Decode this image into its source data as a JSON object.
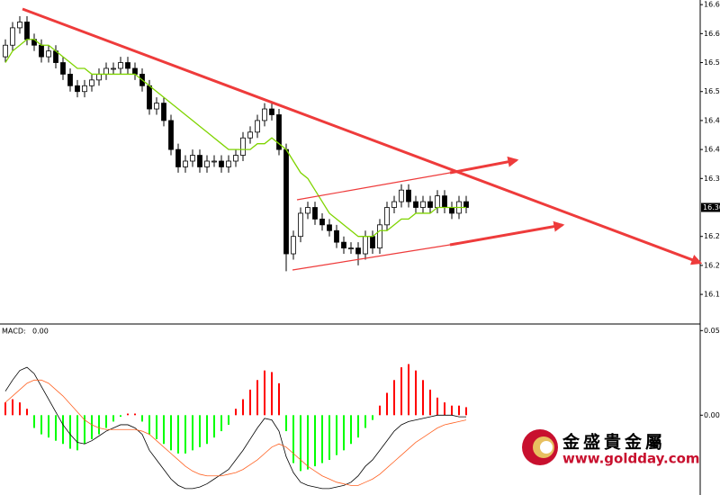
{
  "chart_data": [
    {
      "type": "candlestick",
      "open": [
        16.56,
        16.58,
        16.61,
        16.62,
        16.59,
        16.58,
        16.56,
        16.57,
        16.55,
        16.53,
        16.51,
        16.5,
        16.51,
        16.52,
        16.53,
        16.54,
        16.54,
        16.55,
        16.54,
        16.53,
        16.51,
        16.47,
        16.48,
        16.45,
        16.4,
        16.37,
        16.38,
        16.39,
        16.37,
        16.38,
        16.38,
        16.37,
        16.38,
        16.39,
        16.42,
        16.43,
        16.45,
        16.47,
        16.46,
        16.4,
        16.22,
        16.25,
        16.29,
        16.3,
        16.28,
        16.27,
        16.26,
        16.24,
        16.23,
        16.23,
        16.22,
        16.25,
        16.23,
        16.27,
        16.3,
        16.31,
        16.33,
        16.31,
        16.3,
        16.31,
        16.3,
        16.32,
        16.3,
        16.29,
        16.31
      ],
      "high": [
        16.59,
        16.62,
        16.63,
        16.63,
        16.6,
        16.59,
        16.58,
        16.58,
        16.56,
        16.54,
        16.52,
        16.52,
        16.53,
        16.54,
        16.55,
        16.55,
        16.56,
        16.56,
        16.55,
        16.54,
        16.52,
        16.49,
        16.49,
        16.46,
        16.41,
        16.39,
        16.4,
        16.4,
        16.39,
        16.39,
        16.39,
        16.39,
        16.4,
        16.43,
        16.44,
        16.46,
        16.48,
        16.48,
        16.47,
        16.41,
        16.26,
        16.3,
        16.31,
        16.31,
        16.29,
        16.28,
        16.27,
        16.25,
        16.24,
        16.24,
        16.26,
        16.26,
        16.28,
        16.31,
        16.32,
        16.34,
        16.34,
        16.32,
        16.32,
        16.32,
        16.33,
        16.33,
        16.31,
        16.32,
        16.32
      ],
      "low": [
        16.55,
        16.57,
        16.6,
        16.58,
        16.57,
        16.55,
        16.55,
        16.54,
        16.52,
        16.5,
        16.49,
        16.49,
        16.5,
        16.51,
        16.52,
        16.53,
        16.53,
        16.53,
        16.52,
        16.5,
        16.46,
        16.46,
        16.44,
        16.39,
        16.36,
        16.36,
        16.37,
        16.36,
        16.36,
        16.37,
        16.36,
        16.36,
        16.37,
        16.38,
        16.41,
        16.42,
        16.44,
        16.45,
        16.39,
        16.19,
        16.21,
        16.24,
        16.28,
        16.27,
        16.26,
        16.25,
        16.23,
        16.22,
        16.22,
        16.2,
        16.21,
        16.22,
        16.22,
        16.26,
        16.29,
        16.3,
        16.3,
        16.29,
        16.29,
        16.29,
        16.29,
        16.29,
        16.28,
        16.28,
        16.29
      ],
      "close": [
        16.58,
        16.61,
        16.62,
        16.59,
        16.58,
        16.56,
        16.57,
        16.55,
        16.53,
        16.51,
        16.5,
        16.51,
        16.52,
        16.53,
        16.54,
        16.54,
        16.55,
        16.54,
        16.53,
        16.51,
        16.47,
        16.48,
        16.45,
        16.4,
        16.37,
        16.38,
        16.39,
        16.37,
        16.38,
        16.38,
        16.37,
        16.38,
        16.39,
        16.42,
        16.43,
        16.45,
        16.47,
        16.46,
        16.4,
        16.22,
        16.25,
        16.29,
        16.3,
        16.28,
        16.27,
        16.26,
        16.24,
        16.23,
        16.23,
        16.22,
        16.25,
        16.23,
        16.27,
        16.3,
        16.31,
        16.33,
        16.31,
        16.3,
        16.31,
        16.3,
        16.32,
        16.3,
        16.29,
        16.31,
        16.3
      ],
      "up_color": "#ffffff",
      "down_color": "#000000",
      "ma_lines": [
        {
          "color": "#7fd400",
          "values": [
            16.55,
            16.57,
            16.58,
            16.59,
            16.59,
            16.58,
            16.58,
            16.57,
            16.56,
            16.55,
            16.54,
            16.54,
            16.53,
            16.53,
            16.53,
            16.53,
            16.53,
            16.53,
            16.53,
            16.52,
            16.51,
            16.5,
            16.49,
            16.48,
            16.47,
            16.46,
            16.45,
            16.44,
            16.43,
            16.42,
            16.41,
            16.4,
            16.4,
            16.4,
            16.4,
            16.41,
            16.41,
            16.42,
            16.41,
            16.4,
            16.38,
            16.36,
            16.35,
            16.33,
            16.31,
            16.29,
            16.28,
            16.27,
            16.26,
            16.25,
            16.25,
            16.25,
            16.26,
            16.26,
            16.27,
            16.28,
            16.28,
            16.29,
            16.29,
            16.29,
            16.3,
            16.3,
            16.3,
            16.3,
            16.3
          ]
        }
      ],
      "ylim": [
        16.102,
        16.658
      ],
      "yticks": [
        16.65,
        {
          "value": 16.6,
          "label": "16.60"
        },
        16.55,
        {
          "value": 16.5,
          "label": "16.50"
        },
        16.45,
        {
          "value": 16.4,
          "label": "16.40"
        },
        16.35,
        16.25,
        {
          "value": 16.2,
          "label": "16.20"
        },
        16.15
      ],
      "current_price": {
        "value": 16.3,
        "label": "16.30"
      }
    },
    {
      "type": "macd",
      "title": "MACD:",
      "current_value": {
        "value": 0,
        "label": "0.00"
      },
      "histogram": [
        0.008,
        0.01,
        0.008,
        0.004,
        -0.008,
        -0.012,
        -0.014,
        -0.016,
        -0.018,
        -0.021,
        -0.022,
        -0.018,
        -0.015,
        -0.012,
        -0.008,
        -0.004,
        -0.001,
        0.001,
        0.001,
        -0.004,
        -0.012,
        -0.015,
        -0.018,
        -0.022,
        -0.024,
        -0.024,
        -0.022,
        -0.02,
        -0.018,
        -0.014,
        -0.01,
        -0.006,
        0.004,
        0.01,
        0.016,
        0.022,
        0.028,
        0.027,
        0.02,
        -0.01,
        -0.03,
        -0.035,
        -0.034,
        -0.032,
        -0.03,
        -0.028,
        -0.025,
        -0.022,
        -0.018,
        -0.014,
        -0.008,
        -0.003,
        0.006,
        0.014,
        0.022,
        0.03,
        0.032,
        0.028,
        0.022,
        0.016,
        0.011,
        0.008,
        0.006,
        0.006,
        0.005
      ],
      "positive_color": "#ff0000",
      "negative_color": "#00ff00",
      "lines": [
        {
          "color": "#000000",
          "values": [
            0.015,
            0.022,
            0.028,
            0.03,
            0.026,
            0.018,
            0.01,
            0.002,
            -0.006,
            -0.012,
            -0.017,
            -0.018,
            -0.016,
            -0.013,
            -0.01,
            -0.008,
            -0.006,
            -0.006,
            -0.008,
            -0.012,
            -0.022,
            -0.028,
            -0.034,
            -0.04,
            -0.044,
            -0.046,
            -0.046,
            -0.045,
            -0.043,
            -0.04,
            -0.037,
            -0.034,
            -0.028,
            -0.022,
            -0.015,
            -0.008,
            -0.002,
            -0.003,
            -0.01,
            -0.026,
            -0.036,
            -0.042,
            -0.044,
            -0.045,
            -0.046,
            -0.046,
            -0.045,
            -0.044,
            -0.042,
            -0.038,
            -0.032,
            -0.028,
            -0.022,
            -0.016,
            -0.01,
            -0.006,
            -0.004,
            -0.003,
            -0.002,
            -0.001,
            0.0,
            0.0,
            0.0,
            -0.001,
            -0.001
          ]
        },
        {
          "color": "#ff6020",
          "values": [
            0.008,
            0.012,
            0.016,
            0.02,
            0.022,
            0.022,
            0.02,
            0.016,
            0.012,
            0.007,
            0.002,
            -0.003,
            -0.006,
            -0.008,
            -0.009,
            -0.009,
            -0.009,
            -0.009,
            -0.009,
            -0.01,
            -0.012,
            -0.016,
            -0.02,
            -0.024,
            -0.028,
            -0.032,
            -0.035,
            -0.037,
            -0.038,
            -0.038,
            -0.038,
            -0.037,
            -0.036,
            -0.034,
            -0.031,
            -0.028,
            -0.024,
            -0.02,
            -0.018,
            -0.02,
            -0.024,
            -0.028,
            -0.032,
            -0.035,
            -0.038,
            -0.04,
            -0.042,
            -0.043,
            -0.044,
            -0.044,
            -0.042,
            -0.04,
            -0.037,
            -0.033,
            -0.029,
            -0.025,
            -0.021,
            -0.017,
            -0.014,
            -0.011,
            -0.008,
            -0.006,
            -0.005,
            -0.004,
            -0.003
          ]
        }
      ],
      "ylim": [
        -0.05,
        0.056
      ],
      "yticks": [
        0.053,
        {
          "value": 0,
          "label": "0.00"
        }
      ]
    }
  ],
  "watermark": {
    "name": "金盛貴金屬",
    "url": "www.goldday.com"
  }
}
